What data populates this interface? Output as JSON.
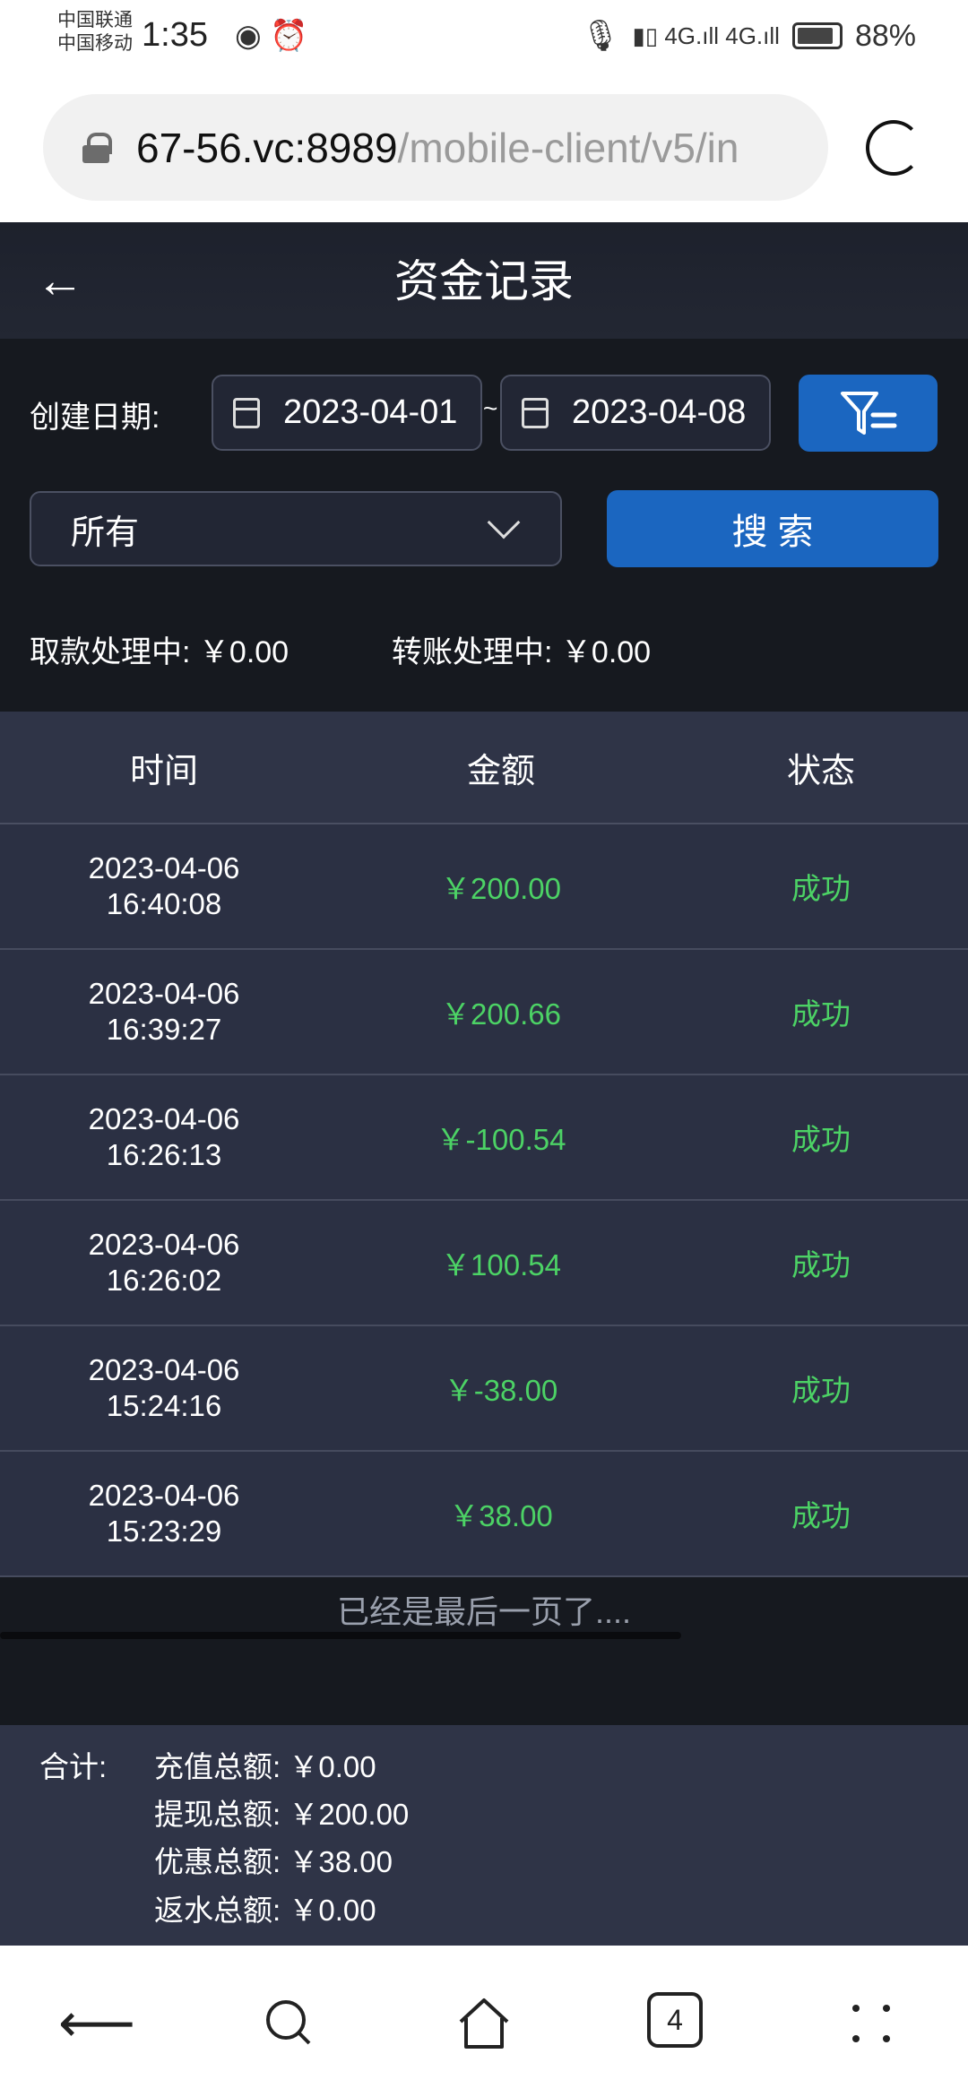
{
  "status_bar": {
    "carrier1": "中国联通",
    "carrier2": "中国移动",
    "time": "1:35",
    "battery": "88%",
    "battery_level": 0.88
  },
  "browser": {
    "url_host": "67-56.vc:8989",
    "url_path": "/mobile-client/v5/in",
    "tab_count": "4"
  },
  "header": {
    "title": "资金记录"
  },
  "filters": {
    "date_label": "创建日期:",
    "start_date": "2023-04-01",
    "separator": "~",
    "end_date": "2023-04-08",
    "type_select": "所有",
    "search_label": "搜 索"
  },
  "pending": {
    "withdraw_label": "取款处理中:",
    "withdraw_value": "￥0.00",
    "transfer_label": "转账处理中:",
    "transfer_value": "￥0.00"
  },
  "table": {
    "headers": [
      "时间",
      "金额",
      "状态"
    ],
    "rows": [
      {
        "date": "2023-04-06",
        "time": "16:40:08",
        "amount": "￥200.00",
        "status": "成功"
      },
      {
        "date": "2023-04-06",
        "time": "16:39:27",
        "amount": "￥200.66",
        "status": "成功"
      },
      {
        "date": "2023-04-06",
        "time": "16:26:13",
        "amount": "￥-100.54",
        "status": "成功"
      },
      {
        "date": "2023-04-06",
        "time": "16:26:02",
        "amount": "￥100.54",
        "status": "成功"
      },
      {
        "date": "2023-04-06",
        "time": "15:24:16",
        "amount": "￥-38.00",
        "status": "成功"
      },
      {
        "date": "2023-04-06",
        "time": "15:23:29",
        "amount": "￥38.00",
        "status": "成功"
      }
    ]
  },
  "end_message": "已经是最后一页了....",
  "summary": {
    "label": "合计:",
    "items": [
      {
        "label": "充值总额:",
        "value": "￥0.00"
      },
      {
        "label": "提现总额:",
        "value": "￥200.00"
      },
      {
        "label": "优惠总额:",
        "value": "￥38.00"
      },
      {
        "label": "返水总额:",
        "value": "￥0.00"
      }
    ]
  },
  "colors": {
    "accent": "#1b66c0",
    "success": "#4cd265",
    "background": "#16191f"
  }
}
